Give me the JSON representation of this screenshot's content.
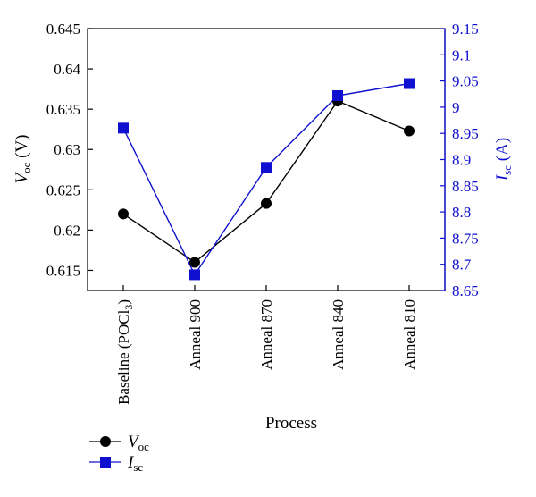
{
  "chart_data": {
    "type": "line",
    "categories": [
      "Baseline (POCl",
      "Anneal 900",
      "Anneal 870",
      "Anneal 840",
      "Anneal 810"
    ],
    "category_subscripts": [
      "3",
      "",
      "",
      "",
      ""
    ],
    "category_suffixes": [
      ")",
      "",
      "",
      "",
      ""
    ],
    "xlabel": "Process",
    "grid": false,
    "legend_placement": "bottom-left",
    "y_left": {
      "label_main": "V",
      "label_sub": "oc",
      "label_unit": " (V)",
      "ylim": [
        0.6125,
        0.645
      ],
      "ticks": [
        "0.615",
        "0.62",
        "0.625",
        "0.63",
        "0.635",
        "0.64",
        "0.645"
      ],
      "tick_values": [
        0.615,
        0.62,
        0.625,
        0.63,
        0.635,
        0.64,
        0.645
      ],
      "color": "#000000"
    },
    "y_right": {
      "label_main": "I",
      "label_sub": "sc",
      "label_unit": " (A)",
      "ylim": [
        8.65,
        9.15
      ],
      "ticks": [
        "8.65",
        "8.7",
        "8.75",
        "8.8",
        "8.85",
        "8.9",
        "8.95",
        "9",
        "9.05",
        "9.1",
        "9.15"
      ],
      "tick_values": [
        8.65,
        8.7,
        8.75,
        8.8,
        8.85,
        8.9,
        8.95,
        9.0,
        9.05,
        9.1,
        9.15
      ],
      "color": "#1010d0"
    },
    "series": [
      {
        "name_main": "V",
        "name_sub": "oc",
        "axis": "left",
        "marker": "circle",
        "color": "#000000",
        "values": [
          0.622,
          0.616,
          0.6233,
          0.636,
          0.6323
        ]
      },
      {
        "name_main": "I",
        "name_sub": "sc",
        "axis": "right",
        "marker": "square",
        "color": "#1010d0",
        "values": [
          8.96,
          8.68,
          8.885,
          9.022,
          9.045
        ]
      }
    ]
  }
}
